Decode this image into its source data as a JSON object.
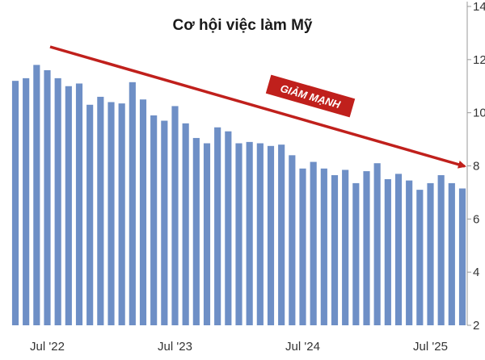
{
  "chart_data": {
    "type": "bar",
    "title": "Cơ hội việc làm Mỹ",
    "xlabel": "",
    "ylabel": "",
    "ylim": [
      2,
      14
    ],
    "yticks": [
      2,
      4,
      6,
      8,
      10,
      12,
      14
    ],
    "x_tick_labels": [
      {
        "label": "Jul '22",
        "index": 3
      },
      {
        "label": "Jul '23",
        "index": 15
      },
      {
        "label": "Jul '24",
        "index": 27
      },
      {
        "label": "Jul '25",
        "index": 39
      }
    ],
    "values": [
      11.2,
      11.3,
      11.8,
      11.6,
      11.3,
      11.0,
      11.1,
      10.3,
      10.6,
      10.4,
      10.35,
      11.15,
      10.5,
      9.9,
      9.7,
      10.25,
      9.6,
      9.05,
      8.85,
      9.45,
      9.3,
      8.85,
      8.9,
      8.85,
      8.75,
      8.8,
      8.4,
      7.9,
      8.15,
      7.9,
      7.65,
      7.85,
      7.35,
      7.8,
      8.1,
      7.5,
      7.7,
      7.45,
      7.1,
      7.35,
      7.65,
      7.35,
      7.15
    ],
    "bar_color": "#6e8fc6",
    "annotation": {
      "text": "GIẢM MẠNH",
      "color": "#c0201c"
    },
    "grid": false
  }
}
